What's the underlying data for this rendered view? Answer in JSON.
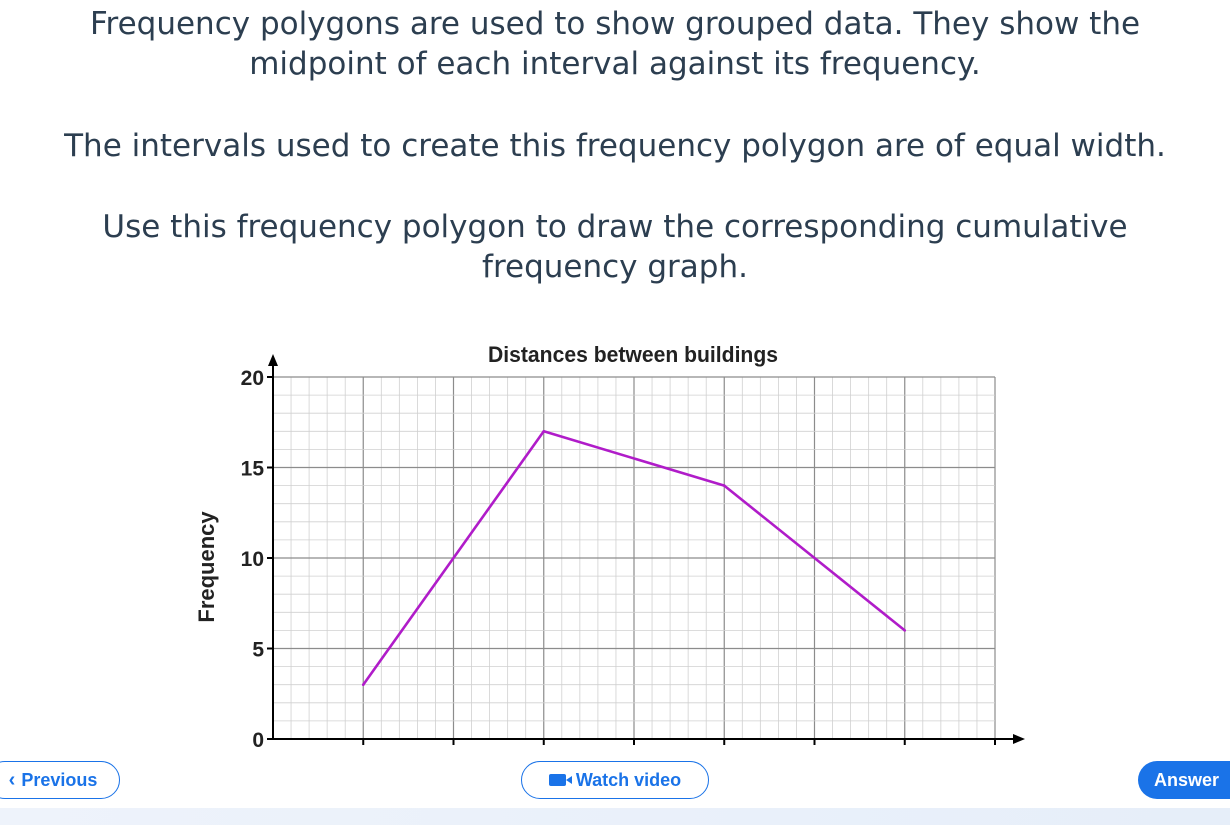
{
  "question": {
    "line1": "Frequency polygons are used to show grouped data. They show the",
    "line2": "midpoint of each interval against its frequency.",
    "line3": "The intervals used to create this frequency polygon are of equal width.",
    "line4": "Use this frequency polygon to draw the corresponding cumulative",
    "line5": "frequency graph."
  },
  "chart_data": {
    "type": "line",
    "title": "Distances between buildings",
    "xlabel": "",
    "ylabel": "Frequency",
    "x": [
      1,
      3,
      5,
      7
    ],
    "values": [
      3,
      17,
      14,
      6
    ],
    "xlim": [
      0,
      8
    ],
    "ylim": [
      0,
      20
    ],
    "yticks": [
      0,
      5,
      10,
      15,
      20
    ],
    "grid": true,
    "line_color": "#b01cc9"
  },
  "nav": {
    "previous_label": "Previous",
    "watch_video_label": "Watch video",
    "answer_label": "Answer"
  },
  "colors": {
    "accent": "#1a73e8",
    "text": "#2c3e50"
  }
}
